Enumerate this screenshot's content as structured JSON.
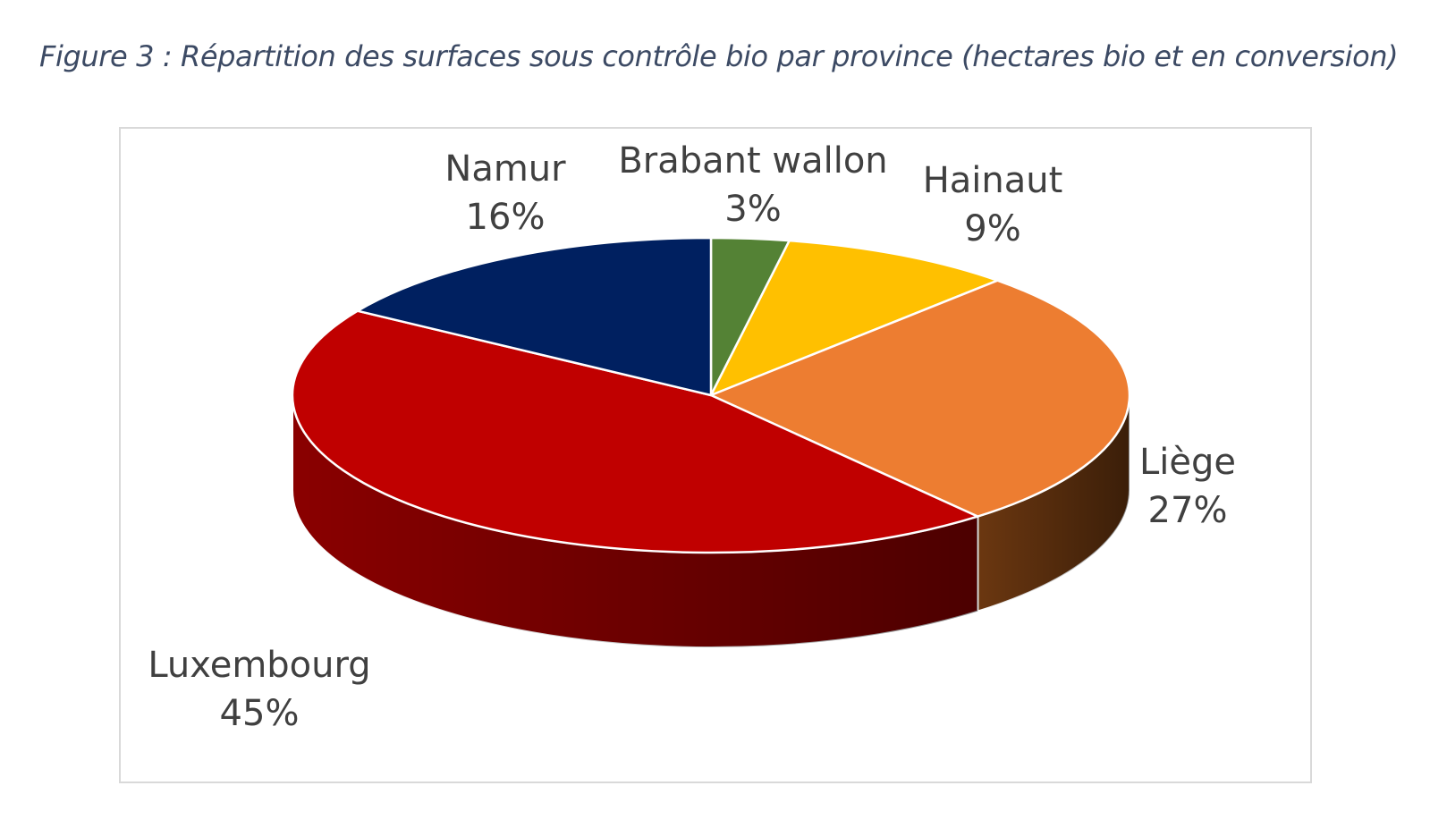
{
  "caption": "Figure 3 : Répartition des surfaces sous contrôle bio par province (hectares bio et en conversion)",
  "chart_data": {
    "type": "pie",
    "style": "3d",
    "title": "",
    "categories": [
      "Brabant wallon",
      "Hainaut",
      "Liège",
      "Luxembourg",
      "Namur"
    ],
    "values": [
      3,
      9,
      27,
      45,
      16
    ],
    "value_labels": [
      "3%",
      "9%",
      "27%",
      "45%",
      "16%"
    ],
    "colors": [
      "#548235",
      "#FFC000",
      "#ED7D31",
      "#C00000",
      "#002060"
    ],
    "side_colors": [
      "#3a5a25",
      "#b38600",
      "#6b3710",
      "#8a0000",
      "#001440"
    ],
    "legend": "none",
    "data_labels": "outside, category name and percentage"
  }
}
